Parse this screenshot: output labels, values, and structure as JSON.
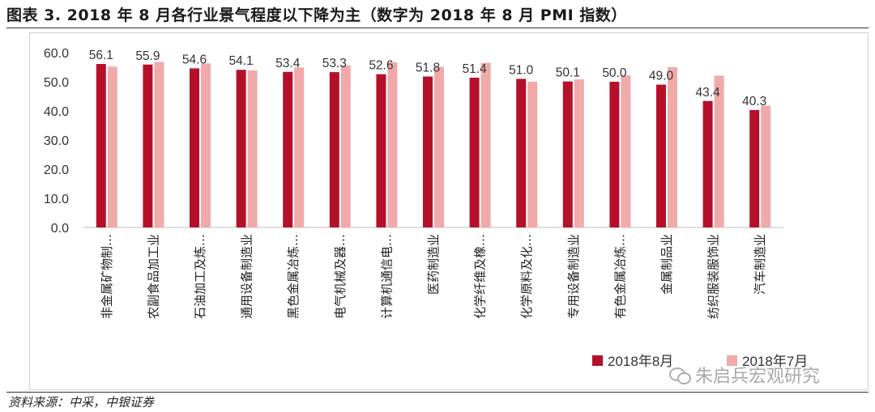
{
  "header": {
    "title": "图表 3. 2018 年 8 月各行业景气程度以下降为主（数字为 2018 年 8 月 PMI 指数）"
  },
  "footer": {
    "source": "资料来源：中采，中银证券",
    "watermark": "朱启兵宏观研究",
    "watermark_icon": "wechat-icon"
  },
  "colors": {
    "aug": "#b5102a",
    "jul": "#f0aaaa"
  },
  "chart_data": {
    "type": "bar",
    "title": "",
    "xlabel": "",
    "ylabel": "",
    "ylim": [
      0,
      60
    ],
    "yticks": [
      "0.0",
      "10.0",
      "20.0",
      "30.0",
      "40.0",
      "50.0",
      "60.0"
    ],
    "grid": false,
    "legend_position": "bottom-right",
    "categories": [
      "非金属矿物制…",
      "农副食品加工业",
      "石油加工及炼…",
      "通用设备制造业",
      "黑色金属冶炼…",
      "电气机械及器…",
      "计算机通信电…",
      "医药制造业",
      "化学纤维及橡…",
      "化学原料及化…",
      "专用设备制造业",
      "有色金属冶炼…",
      "金属制品业",
      "纺织服装服饰业",
      "汽车制造业"
    ],
    "series": [
      {
        "name": "2018年8月",
        "values": [
          56.1,
          55.9,
          54.6,
          54.1,
          53.4,
          53.3,
          52.6,
          51.8,
          51.4,
          51.0,
          50.1,
          50.0,
          49.0,
          43.4,
          40.3
        ],
        "labels": [
          "56.1",
          "55.9",
          "54.6",
          "54.1",
          "53.4",
          "53.3",
          "52.6",
          "51.8",
          "51.4",
          "51.0",
          "50.1",
          "50.0",
          "49.0",
          "43.4",
          "40.3"
        ]
      },
      {
        "name": "2018年7月",
        "values": [
          55.2,
          56.8,
          56.3,
          53.9,
          54.9,
          55.6,
          56.7,
          55.1,
          56.5,
          50.0,
          50.8,
          52.2,
          55.0,
          52.1,
          41.8
        ]
      }
    ]
  }
}
